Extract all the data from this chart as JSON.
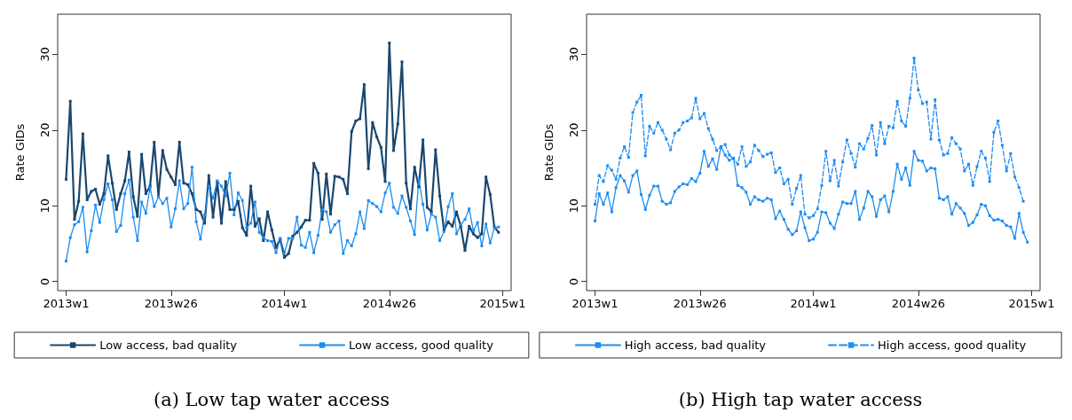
{
  "chart_data": [
    {
      "type": "line",
      "title": "(a) Low tap water access",
      "ylabel": "Rate GIDs",
      "marker": "square",
      "grid": false,
      "legend": "bottom",
      "ylim": [
        -1.2,
        35.3
      ],
      "yticks": [
        0,
        10,
        20,
        30
      ],
      "categories": [
        "2013w1",
        null,
        null,
        null,
        null,
        null,
        null,
        null,
        null,
        null,
        null,
        null,
        null,
        null,
        null,
        null,
        null,
        null,
        null,
        null,
        null,
        null,
        null,
        null,
        null,
        "2013w26",
        null,
        null,
        null,
        null,
        null,
        null,
        null,
        null,
        null,
        null,
        null,
        null,
        null,
        null,
        null,
        null,
        null,
        null,
        null,
        null,
        null,
        null,
        null,
        null,
        null,
        null,
        "2014w1",
        null,
        null,
        null,
        null,
        null,
        null,
        null,
        null,
        null,
        null,
        null,
        null,
        null,
        null,
        null,
        null,
        null,
        null,
        null,
        null,
        null,
        null,
        null,
        null,
        "2014w26",
        null,
        null,
        null,
        null,
        null,
        null,
        null,
        null,
        null,
        null,
        null,
        null,
        null,
        null,
        null,
        null,
        null,
        null,
        null,
        null,
        null,
        null,
        null,
        null,
        null,
        null,
        "2015w1"
      ],
      "series": [
        {
          "name": "Low access, bad quality",
          "color": "#1a476f",
          "line_style": "solid",
          "values": [
            13.5,
            23.8,
            8.2,
            10.6,
            19.5,
            10.8,
            11.9,
            12.2,
            10.2,
            11.6,
            16.6,
            13.0,
            9.5,
            11.6,
            13.3,
            17.1,
            11.2,
            8.6,
            16.8,
            11.6,
            12.6,
            18.4,
            11.3,
            17.3,
            14.8,
            13.8,
            12.8,
            18.4,
            13.0,
            12.8,
            11.6,
            9.5,
            9.2,
            7.7,
            14.0,
            8.5,
            13.2,
            7.7,
            13.2,
            9.5,
            9.5,
            10.6,
            7.1,
            6.1,
            12.6,
            7.3,
            8.3,
            5.4,
            9.2,
            6.8,
            4.5,
            5.6,
            3.2,
            3.7,
            6.0,
            6.5,
            7.2,
            8.1,
            8.1,
            15.6,
            14.3,
            8.2,
            14.2,
            8.9,
            13.9,
            13.8,
            13.5,
            11.6,
            19.8,
            21.2,
            21.5,
            26.0,
            14.9,
            21.0,
            19.1,
            17.7,
            13.2,
            31.5,
            17.3,
            20.8,
            29.0,
            13.0,
            9.6,
            15.1,
            12.5,
            18.7,
            9.8,
            9.2,
            17.4,
            11.3,
            6.8,
            7.9,
            7.3,
            9.2,
            7.3,
            4.1,
            7.3,
            6.3,
            5.8,
            6.3,
            13.8,
            11.5,
            7.2,
            6.5,
            null
          ]
        },
        {
          "name": "Low access, good quality",
          "color": "#1e8cf0",
          "line_style": "solid",
          "values": [
            2.7,
            5.8,
            7.5,
            7.9,
            9.8,
            3.9,
            6.7,
            10.1,
            7.8,
            10.8,
            12.9,
            10.8,
            6.6,
            7.4,
            11.6,
            13.4,
            8.5,
            5.4,
            10.5,
            9.0,
            12.4,
            9.9,
            11.2,
            10.3,
            11.0,
            7.2,
            9.6,
            13.3,
            9.6,
            10.3,
            15.1,
            7.9,
            5.6,
            8.8,
            12.6,
            11.0,
            13.3,
            12.6,
            11.3,
            14.3,
            8.8,
            11.7,
            10.7,
            7.1,
            7.7,
            10.5,
            6.5,
            5.8,
            5.4,
            5.3,
            3.8,
            5.7,
            3.8,
            5.7,
            5.7,
            8.5,
            4.8,
            4.5,
            6.5,
            3.8,
            6.1,
            9.5,
            9.2,
            6.5,
            7.5,
            8.0,
            3.7,
            5.4,
            4.7,
            6.3,
            9.2,
            7.0,
            10.7,
            10.3,
            9.9,
            9.2,
            11.7,
            13.0,
            9.8,
            9.0,
            11.3,
            9.8,
            8.0,
            6.2,
            13.5,
            10.2,
            6.8,
            8.9,
            8.5,
            5.4,
            6.6,
            9.9,
            11.6,
            6.3,
            7.5,
            8.2,
            9.6,
            6.7,
            7.8,
            4.7,
            7.6,
            5.1,
            7.1,
            7.2,
            null
          ]
        }
      ]
    },
    {
      "type": "line",
      "title": "(b) High tap water access",
      "ylabel": "Rate GIDs",
      "marker": "square",
      "grid": false,
      "legend": "bottom",
      "ylim": [
        -1.2,
        35.3
      ],
      "yticks": [
        0,
        10,
        20,
        30
      ],
      "categories": [
        "2013w1",
        null,
        null,
        null,
        null,
        null,
        null,
        null,
        null,
        null,
        null,
        null,
        null,
        null,
        null,
        null,
        null,
        null,
        null,
        null,
        null,
        null,
        null,
        null,
        null,
        "2013w26",
        null,
        null,
        null,
        null,
        null,
        null,
        null,
        null,
        null,
        null,
        null,
        null,
        null,
        null,
        null,
        null,
        null,
        null,
        null,
        null,
        null,
        null,
        null,
        null,
        null,
        null,
        "2014w1",
        null,
        null,
        null,
        null,
        null,
        null,
        null,
        null,
        null,
        null,
        null,
        null,
        null,
        null,
        null,
        null,
        null,
        null,
        null,
        null,
        null,
        null,
        null,
        null,
        "2014w26",
        null,
        null,
        null,
        null,
        null,
        null,
        null,
        null,
        null,
        null,
        null,
        null,
        null,
        null,
        null,
        null,
        null,
        null,
        null,
        null,
        null,
        null,
        null,
        null,
        null,
        null,
        "2015w1"
      ],
      "series": [
        {
          "name": "High access, bad quality",
          "color": "#1e8cf0",
          "line_style": "solid",
          "values": [
            8.0,
            11.6,
            10.2,
            11.7,
            9.2,
            12.4,
            14.0,
            13.3,
            11.8,
            14.0,
            14.6,
            11.5,
            9.5,
            11.4,
            12.6,
            12.6,
            10.6,
            10.2,
            10.4,
            11.9,
            12.5,
            12.9,
            12.8,
            13.6,
            13.2,
            14.3,
            17.2,
            15.2,
            16.2,
            14.8,
            17.8,
            16.7,
            16.0,
            16.3,
            12.7,
            12.4,
            11.8,
            10.2,
            11.2,
            10.8,
            10.6,
            11.0,
            10.8,
            8.3,
            9.3,
            8.2,
            6.9,
            6.2,
            6.7,
            9.2,
            7.1,
            5.4,
            5.6,
            6.5,
            9.2,
            9.1,
            7.7,
            7.0,
            8.9,
            10.5,
            10.3,
            10.3,
            11.9,
            8.2,
            9.7,
            11.9,
            11.2,
            8.6,
            10.8,
            11.3,
            9.2,
            11.9,
            15.5,
            13.5,
            15.0,
            12.7,
            17.2,
            16.0,
            15.9,
            14.6,
            15.0,
            14.9,
            11.0,
            10.8,
            11.2,
            8.9,
            10.3,
            9.7,
            9.0,
            7.4,
            7.8,
            8.8,
            10.2,
            10.0,
            8.7,
            8.1,
            8.2,
            8.0,
            7.4,
            7.2,
            5.7,
            9.0,
            6.5,
            5.2,
            null
          ]
        },
        {
          "name": "High access, good quality",
          "color": "#1e8cf0",
          "line_style": "dashed",
          "values": [
            10.2,
            14.0,
            13.2,
            15.3,
            14.7,
            13.5,
            16.3,
            17.8,
            16.4,
            22.3,
            23.7,
            24.6,
            16.6,
            20.5,
            19.6,
            21.0,
            20.0,
            18.8,
            17.4,
            19.6,
            20.0,
            21.0,
            21.2,
            21.6,
            24.2,
            21.5,
            22.2,
            20.2,
            18.8,
            17.3,
            17.8,
            18.1,
            16.7,
            16.2,
            15.5,
            17.8,
            15.2,
            15.8,
            18.0,
            17.3,
            16.5,
            16.8,
            17.0,
            14.4,
            15.0,
            12.9,
            13.5,
            10.2,
            12.3,
            14.0,
            8.9,
            8.4,
            8.7,
            9.6,
            12.7,
            17.2,
            13.3,
            16.0,
            12.6,
            15.8,
            18.7,
            16.9,
            15.1,
            18.2,
            17.5,
            18.9,
            20.6,
            16.7,
            21.0,
            18.2,
            20.5,
            20.3,
            23.8,
            21.2,
            20.5,
            24.2,
            29.5,
            25.3,
            23.5,
            23.7,
            18.8,
            24.0,
            18.7,
            16.7,
            16.9,
            19.0,
            18.2,
            17.5,
            14.6,
            15.5,
            12.7,
            15.2,
            17.2,
            16.3,
            13.2,
            19.7,
            21.2,
            18.0,
            14.6,
            16.9,
            13.8,
            12.4,
            10.6,
            null,
            null
          ]
        }
      ]
    }
  ]
}
